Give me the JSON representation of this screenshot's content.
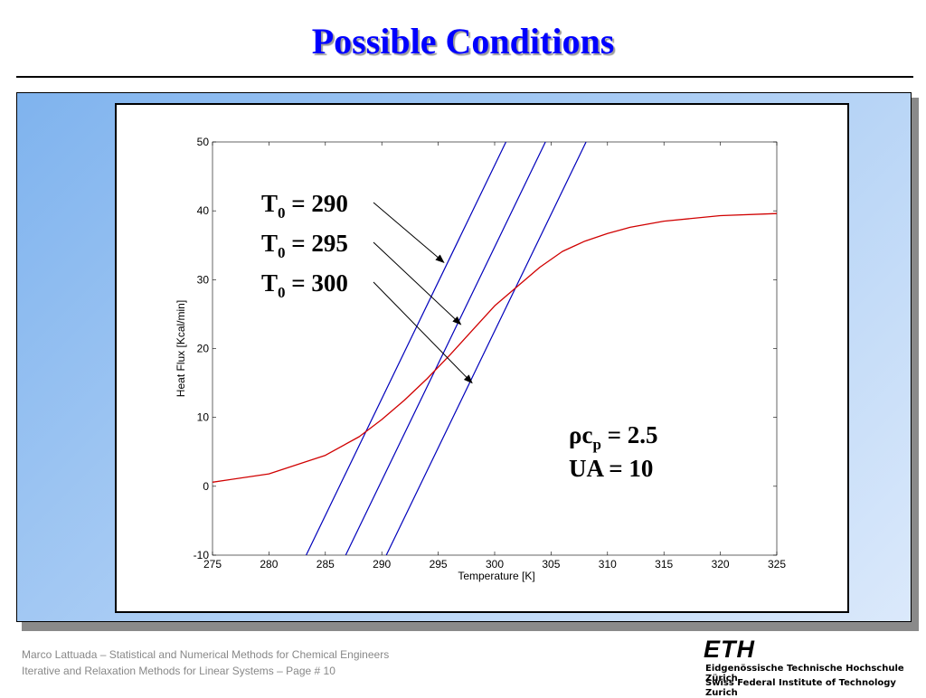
{
  "slide": {
    "title": "Possible Conditions",
    "footer_line1": "Marco Lattuada – Statistical and Numerical Methods for Chemical Engineers",
    "footer_line2": "Iterative and Relaxation Methods for Linear Systems – Page #  10",
    "logo_text": "ETH",
    "institution_line1": "Eidgenössische Technische Hochschule Zürich",
    "institution_line2": "Swiss Federal Institute of Technology Zurich"
  },
  "chart_data": {
    "type": "line",
    "xlabel": "Temperature [K]",
    "ylabel": "Heat Flux [Kcal/min]",
    "xlim": [
      275,
      325
    ],
    "ylim": [
      -10,
      50
    ],
    "xticks": [
      275,
      280,
      285,
      290,
      295,
      300,
      305,
      310,
      315,
      320,
      325
    ],
    "yticks": [
      -10,
      0,
      10,
      20,
      30,
      40,
      50
    ],
    "grid": false,
    "heat_generation_curve": {
      "color": "#d00000",
      "x": [
        275,
        280,
        285,
        288,
        290,
        292,
        294,
        296,
        298,
        300,
        302,
        304,
        306,
        308,
        310,
        312,
        315,
        320,
        325
      ],
      "y": [
        0.6,
        1.8,
        4.5,
        7.2,
        9.7,
        12.5,
        15.6,
        19.0,
        22.6,
        26.2,
        29.0,
        31.8,
        34.1,
        35.6,
        36.7,
        37.6,
        38.5,
        39.3,
        39.6
      ]
    },
    "heat_removal_lines": [
      {
        "label": "T0 = 290",
        "color": "#0000bb",
        "x": [
          283.3,
          301.0
        ],
        "y": [
          -10,
          50
        ]
      },
      {
        "label": "T0 = 295",
        "color": "#0000bb",
        "x": [
          286.8,
          304.5
        ],
        "y": [
          -10,
          50
        ]
      },
      {
        "label": "T0 = 300",
        "color": "#0000bb",
        "x": [
          290.4,
          308.1
        ],
        "y": [
          -10,
          50
        ]
      }
    ],
    "annotations": [
      {
        "base": "T",
        "sub": "0",
        "rest": " = 290",
        "arrow_to": [
          295.5,
          32.5
        ]
      },
      {
        "base": "T",
        "sub": "0",
        "rest": " = 295",
        "arrow_to": [
          297.0,
          23.5
        ]
      },
      {
        "base": "T",
        "sub": "0",
        "rest": " = 300",
        "arrow_to": [
          298.0,
          15.0
        ]
      }
    ],
    "parameters": [
      {
        "base": "ρc",
        "sub": "p",
        "rest": " = 2.5"
      },
      {
        "base": "UA = 10",
        "sub": "",
        "rest": ""
      }
    ]
  }
}
